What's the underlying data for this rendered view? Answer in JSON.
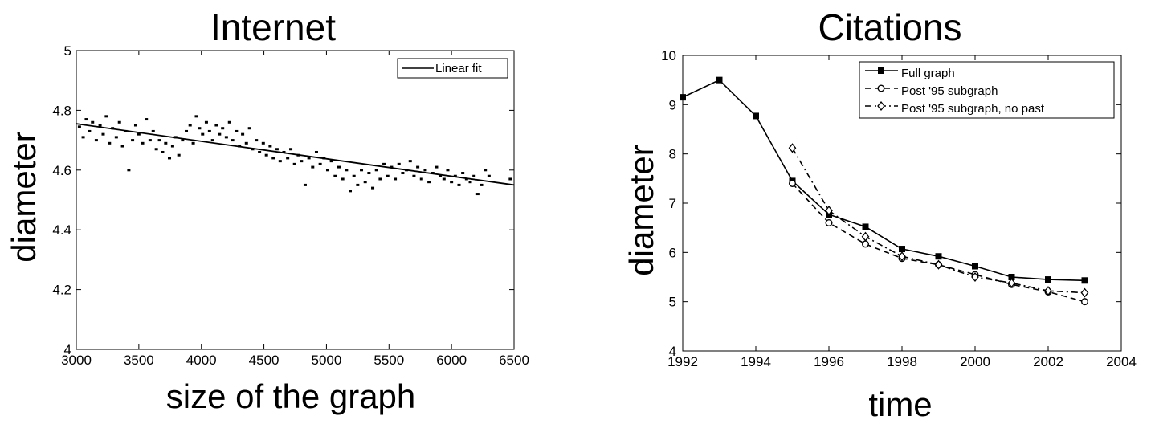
{
  "chart_data": [
    {
      "type": "scatter",
      "title": "Internet",
      "xlabel": "size of the graph",
      "ylabel": "diameter",
      "xlim": [
        3000,
        6500
      ],
      "ylim": [
        4,
        5
      ],
      "xticks": [
        "3000",
        "3500",
        "4000",
        "4500",
        "5000",
        "5500",
        "6000",
        "6500"
      ],
      "yticks": [
        "4",
        "4.2",
        "4.4",
        "4.6",
        "4.8",
        "5"
      ],
      "legend": {
        "position": "top-right",
        "entries": [
          "Linear fit"
        ]
      },
      "grid": false,
      "series": [
        {
          "name": "Linear fit",
          "kind": "line",
          "x": [
            3000,
            6500
          ],
          "y": [
            4.755,
            4.55
          ]
        }
      ],
      "scatter_points": [
        [
          3025,
          4.745
        ],
        [
          3055,
          4.71
        ],
        [
          3080,
          4.77
        ],
        [
          3105,
          4.73
        ],
        [
          3130,
          4.76
        ],
        [
          3160,
          4.7
        ],
        [
          3190,
          4.75
        ],
        [
          3215,
          4.72
        ],
        [
          3240,
          4.78
        ],
        [
          3265,
          4.69
        ],
        [
          3290,
          4.74
        ],
        [
          3320,
          4.71
        ],
        [
          3345,
          4.76
        ],
        [
          3370,
          4.68
        ],
        [
          3395,
          4.73
        ],
        [
          3420,
          4.6
        ],
        [
          3450,
          4.7
        ],
        [
          3475,
          4.75
        ],
        [
          3500,
          4.72
        ],
        [
          3530,
          4.69
        ],
        [
          3560,
          4.77
        ],
        [
          3590,
          4.7
        ],
        [
          3615,
          4.73
        ],
        [
          3640,
          4.67
        ],
        [
          3665,
          4.7
        ],
        [
          3690,
          4.66
        ],
        [
          3715,
          4.69
        ],
        [
          3745,
          4.64
        ],
        [
          3770,
          4.68
        ],
        [
          3795,
          4.71
        ],
        [
          3820,
          4.65
        ],
        [
          3850,
          4.7
        ],
        [
          3880,
          4.73
        ],
        [
          3910,
          4.75
        ],
        [
          3935,
          4.69
        ],
        [
          3960,
          4.78
        ],
        [
          3985,
          4.74
        ],
        [
          4010,
          4.72
        ],
        [
          4040,
          4.76
        ],
        [
          4065,
          4.73
        ],
        [
          4090,
          4.7
        ],
        [
          4120,
          4.75
        ],
        [
          4145,
          4.72
        ],
        [
          4170,
          4.74
        ],
        [
          4200,
          4.71
        ],
        [
          4225,
          4.76
        ],
        [
          4250,
          4.7
        ],
        [
          4280,
          4.73
        ],
        [
          4305,
          4.68
        ],
        [
          4330,
          4.72
        ],
        [
          4360,
          4.69
        ],
        [
          4385,
          4.74
        ],
        [
          4410,
          4.67
        ],
        [
          4440,
          4.7
        ],
        [
          4465,
          4.66
        ],
        [
          4495,
          4.69
        ],
        [
          4520,
          4.65
        ],
        [
          4550,
          4.68
        ],
        [
          4575,
          4.64
        ],
        [
          4605,
          4.67
        ],
        [
          4630,
          4.63
        ],
        [
          4660,
          4.66
        ],
        [
          4690,
          4.64
        ],
        [
          4715,
          4.67
        ],
        [
          4745,
          4.62
        ],
        [
          4775,
          4.65
        ],
        [
          4800,
          4.63
        ],
        [
          4830,
          4.55
        ],
        [
          4860,
          4.64
        ],
        [
          4890,
          4.61
        ],
        [
          4920,
          4.66
        ],
        [
          4950,
          4.62
        ],
        [
          4980,
          4.64
        ],
        [
          5010,
          4.6
        ],
        [
          5040,
          4.63
        ],
        [
          5070,
          4.58
        ],
        [
          5100,
          4.61
        ],
        [
          5130,
          4.57
        ],
        [
          5160,
          4.6
        ],
        [
          5190,
          4.53
        ],
        [
          5220,
          4.58
        ],
        [
          5250,
          4.55
        ],
        [
          5280,
          4.6
        ],
        [
          5310,
          4.56
        ],
        [
          5340,
          4.59
        ],
        [
          5370,
          4.54
        ],
        [
          5400,
          4.6
        ],
        [
          5430,
          4.57
        ],
        [
          5460,
          4.62
        ],
        [
          5490,
          4.58
        ],
        [
          5520,
          4.61
        ],
        [
          5550,
          4.57
        ],
        [
          5580,
          4.62
        ],
        [
          5610,
          4.59
        ],
        [
          5640,
          4.6
        ],
        [
          5670,
          4.63
        ],
        [
          5700,
          4.58
        ],
        [
          5730,
          4.61
        ],
        [
          5760,
          4.57
        ],
        [
          5790,
          4.6
        ],
        [
          5820,
          4.56
        ],
        [
          5850,
          4.59
        ],
        [
          5880,
          4.61
        ],
        [
          5910,
          4.58
        ],
        [
          5940,
          4.57
        ],
        [
          5970,
          4.6
        ],
        [
          6000,
          4.56
        ],
        [
          6030,
          4.58
        ],
        [
          6060,
          4.55
        ],
        [
          6090,
          4.59
        ],
        [
          6120,
          4.57
        ],
        [
          6150,
          4.56
        ],
        [
          6180,
          4.58
        ],
        [
          6210,
          4.52
        ],
        [
          6240,
          4.55
        ],
        [
          6270,
          4.6
        ],
        [
          6300,
          4.58
        ],
        [
          6470,
          4.57
        ]
      ]
    },
    {
      "type": "line",
      "title": "Citations",
      "xlabel": "time",
      "ylabel": "diameter",
      "xlim": [
        1992,
        2004
      ],
      "ylim": [
        4,
        10
      ],
      "xticks": [
        "1992",
        "1994",
        "1996",
        "1998",
        "2000",
        "2002",
        "2004"
      ],
      "yticks": [
        "4",
        "5",
        "6",
        "7",
        "8",
        "9",
        "10"
      ],
      "legend": {
        "position": "top-right",
        "entries": [
          "Full graph",
          "Post '95 subgraph",
          "Post '95 subgraph, no past"
        ]
      },
      "grid": false,
      "series": [
        {
          "name": "Full graph",
          "style": "solid",
          "marker": "square",
          "x": [
            1992,
            1993,
            1994,
            1995,
            1996,
            1997,
            1998,
            1999,
            2000,
            2001,
            2002,
            2003
          ],
          "y": [
            9.15,
            9.5,
            8.77,
            7.45,
            6.77,
            6.52,
            6.07,
            5.92,
            5.72,
            5.5,
            5.45,
            5.43
          ]
        },
        {
          "name": "Post '95 subgraph",
          "style": "dashed",
          "marker": "circle",
          "x": [
            1995,
            1996,
            1997,
            1998,
            1999,
            2000,
            2001,
            2002,
            2003
          ],
          "y": [
            7.4,
            6.6,
            6.17,
            5.88,
            5.75,
            5.55,
            5.35,
            5.2,
            5.0
          ]
        },
        {
          "name": "Post '95 subgraph, no past",
          "style": "dashdot",
          "marker": "diamond",
          "x": [
            1995,
            1996,
            1997,
            1998,
            1999,
            2000,
            2001,
            2002,
            2003
          ],
          "y": [
            8.12,
            6.85,
            6.32,
            5.92,
            5.75,
            5.5,
            5.38,
            5.22,
            5.18
          ]
        }
      ]
    }
  ]
}
